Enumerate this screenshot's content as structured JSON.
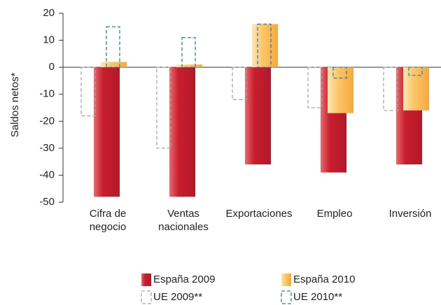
{
  "chart_data": {
    "type": "bar",
    "y_label": "Saldos netos*",
    "categories": [
      "Cifra de\nnegocio",
      "Ventas\nnacionales",
      "Exportaciones",
      "Empleo",
      "Inversión"
    ],
    "series": [
      {
        "name": "España 2009",
        "color": "#c81f2e",
        "dashed": false,
        "values": [
          -48,
          -48,
          -36,
          -39,
          -36
        ]
      },
      {
        "name": "España 2010",
        "color": "#fbb84e",
        "dashed": false,
        "values": [
          2,
          1,
          16,
          -17,
          -16
        ]
      },
      {
        "name": "UE 2009**",
        "color": "#a8a8a8",
        "dashed": true,
        "values": [
          -18,
          -30,
          -12,
          -15,
          -16
        ]
      },
      {
        "name": "UE 2010**",
        "color": "#3a78b0",
        "dashed": true,
        "values": [
          15,
          11,
          16,
          -4,
          -3
        ]
      }
    ],
    "ylim": [
      -50,
      20
    ],
    "yticks": [
      20,
      10,
      0,
      -10,
      -20,
      -30,
      -40,
      -50
    ],
    "grid": false
  }
}
